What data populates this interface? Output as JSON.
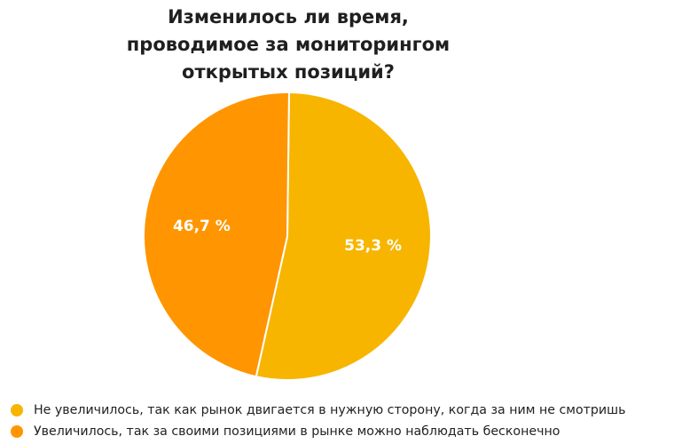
{
  "chart_data": {
    "type": "pie",
    "title_lines": [
      "Изменилось ли время,",
      "проводимое за мониторингом",
      "открытых позиций?"
    ],
    "slices": [
      {
        "label": "Не увеличилось, так как рынок двигается в нужную сторону, когда за ним не смотришь",
        "value": 53.3,
        "value_label": "53,3 %",
        "color": "#F7B500"
      },
      {
        "label": "Увеличилось, так за своими позициями в рынке можно наблюдать бесконечно",
        "value": 46.7,
        "value_label": "46,7 %",
        "color": "#FF9500"
      }
    ],
    "legend_position": "bottom-left"
  }
}
